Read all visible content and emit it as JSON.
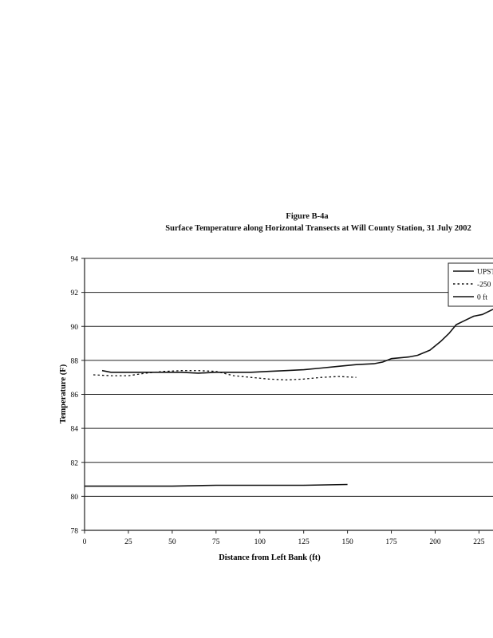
{
  "figure": {
    "title": "Figure B-4a",
    "subtitle": "Surface Temperature along Horizontal Transects at Will County Station, 31 July 2002"
  },
  "chart_data": {
    "type": "line",
    "xlabel": "Distance from Left Bank (ft)",
    "ylabel": "Temperature (F)",
    "xlim": [
      0,
      233
    ],
    "ylim": [
      78,
      94
    ],
    "xticks": [
      0,
      25,
      50,
      75,
      100,
      125,
      150,
      175,
      200,
      225
    ],
    "yticks": [
      78,
      80,
      82,
      84,
      86,
      88,
      90,
      92,
      94
    ],
    "grid": "horizontal",
    "legend_position": "top-right",
    "series": [
      {
        "name": "UPST",
        "style": "solid",
        "x": [
          0,
          25,
          50,
          75,
          100,
          125,
          150
        ],
        "y": [
          80.6,
          80.6,
          80.6,
          80.65,
          80.65,
          80.65,
          80.7
        ]
      },
      {
        "name": "-250",
        "style": "dotted",
        "x": [
          5,
          15,
          25,
          35,
          45,
          55,
          65,
          75,
          85,
          95,
          105,
          115,
          125,
          135,
          145,
          155
        ],
        "y": [
          87.15,
          87.1,
          87.1,
          87.25,
          87.35,
          87.4,
          87.4,
          87.35,
          87.1,
          87.0,
          86.9,
          86.85,
          86.9,
          87.0,
          87.05,
          87.0
        ]
      },
      {
        "name": "0 ft",
        "style": "solid",
        "x": [
          10,
          15,
          25,
          35,
          45,
          55,
          65,
          75,
          85,
          95,
          105,
          115,
          125,
          135,
          145,
          155,
          165,
          170,
          175,
          185,
          190,
          197,
          203,
          208,
          212,
          217,
          222,
          227,
          233
        ],
        "y": [
          87.4,
          87.3,
          87.3,
          87.3,
          87.3,
          87.3,
          87.25,
          87.3,
          87.3,
          87.3,
          87.35,
          87.4,
          87.45,
          87.55,
          87.65,
          87.75,
          87.8,
          87.9,
          88.1,
          88.2,
          88.3,
          88.6,
          89.1,
          89.6,
          90.1,
          90.35,
          90.6,
          90.7,
          91.0
        ]
      }
    ]
  }
}
